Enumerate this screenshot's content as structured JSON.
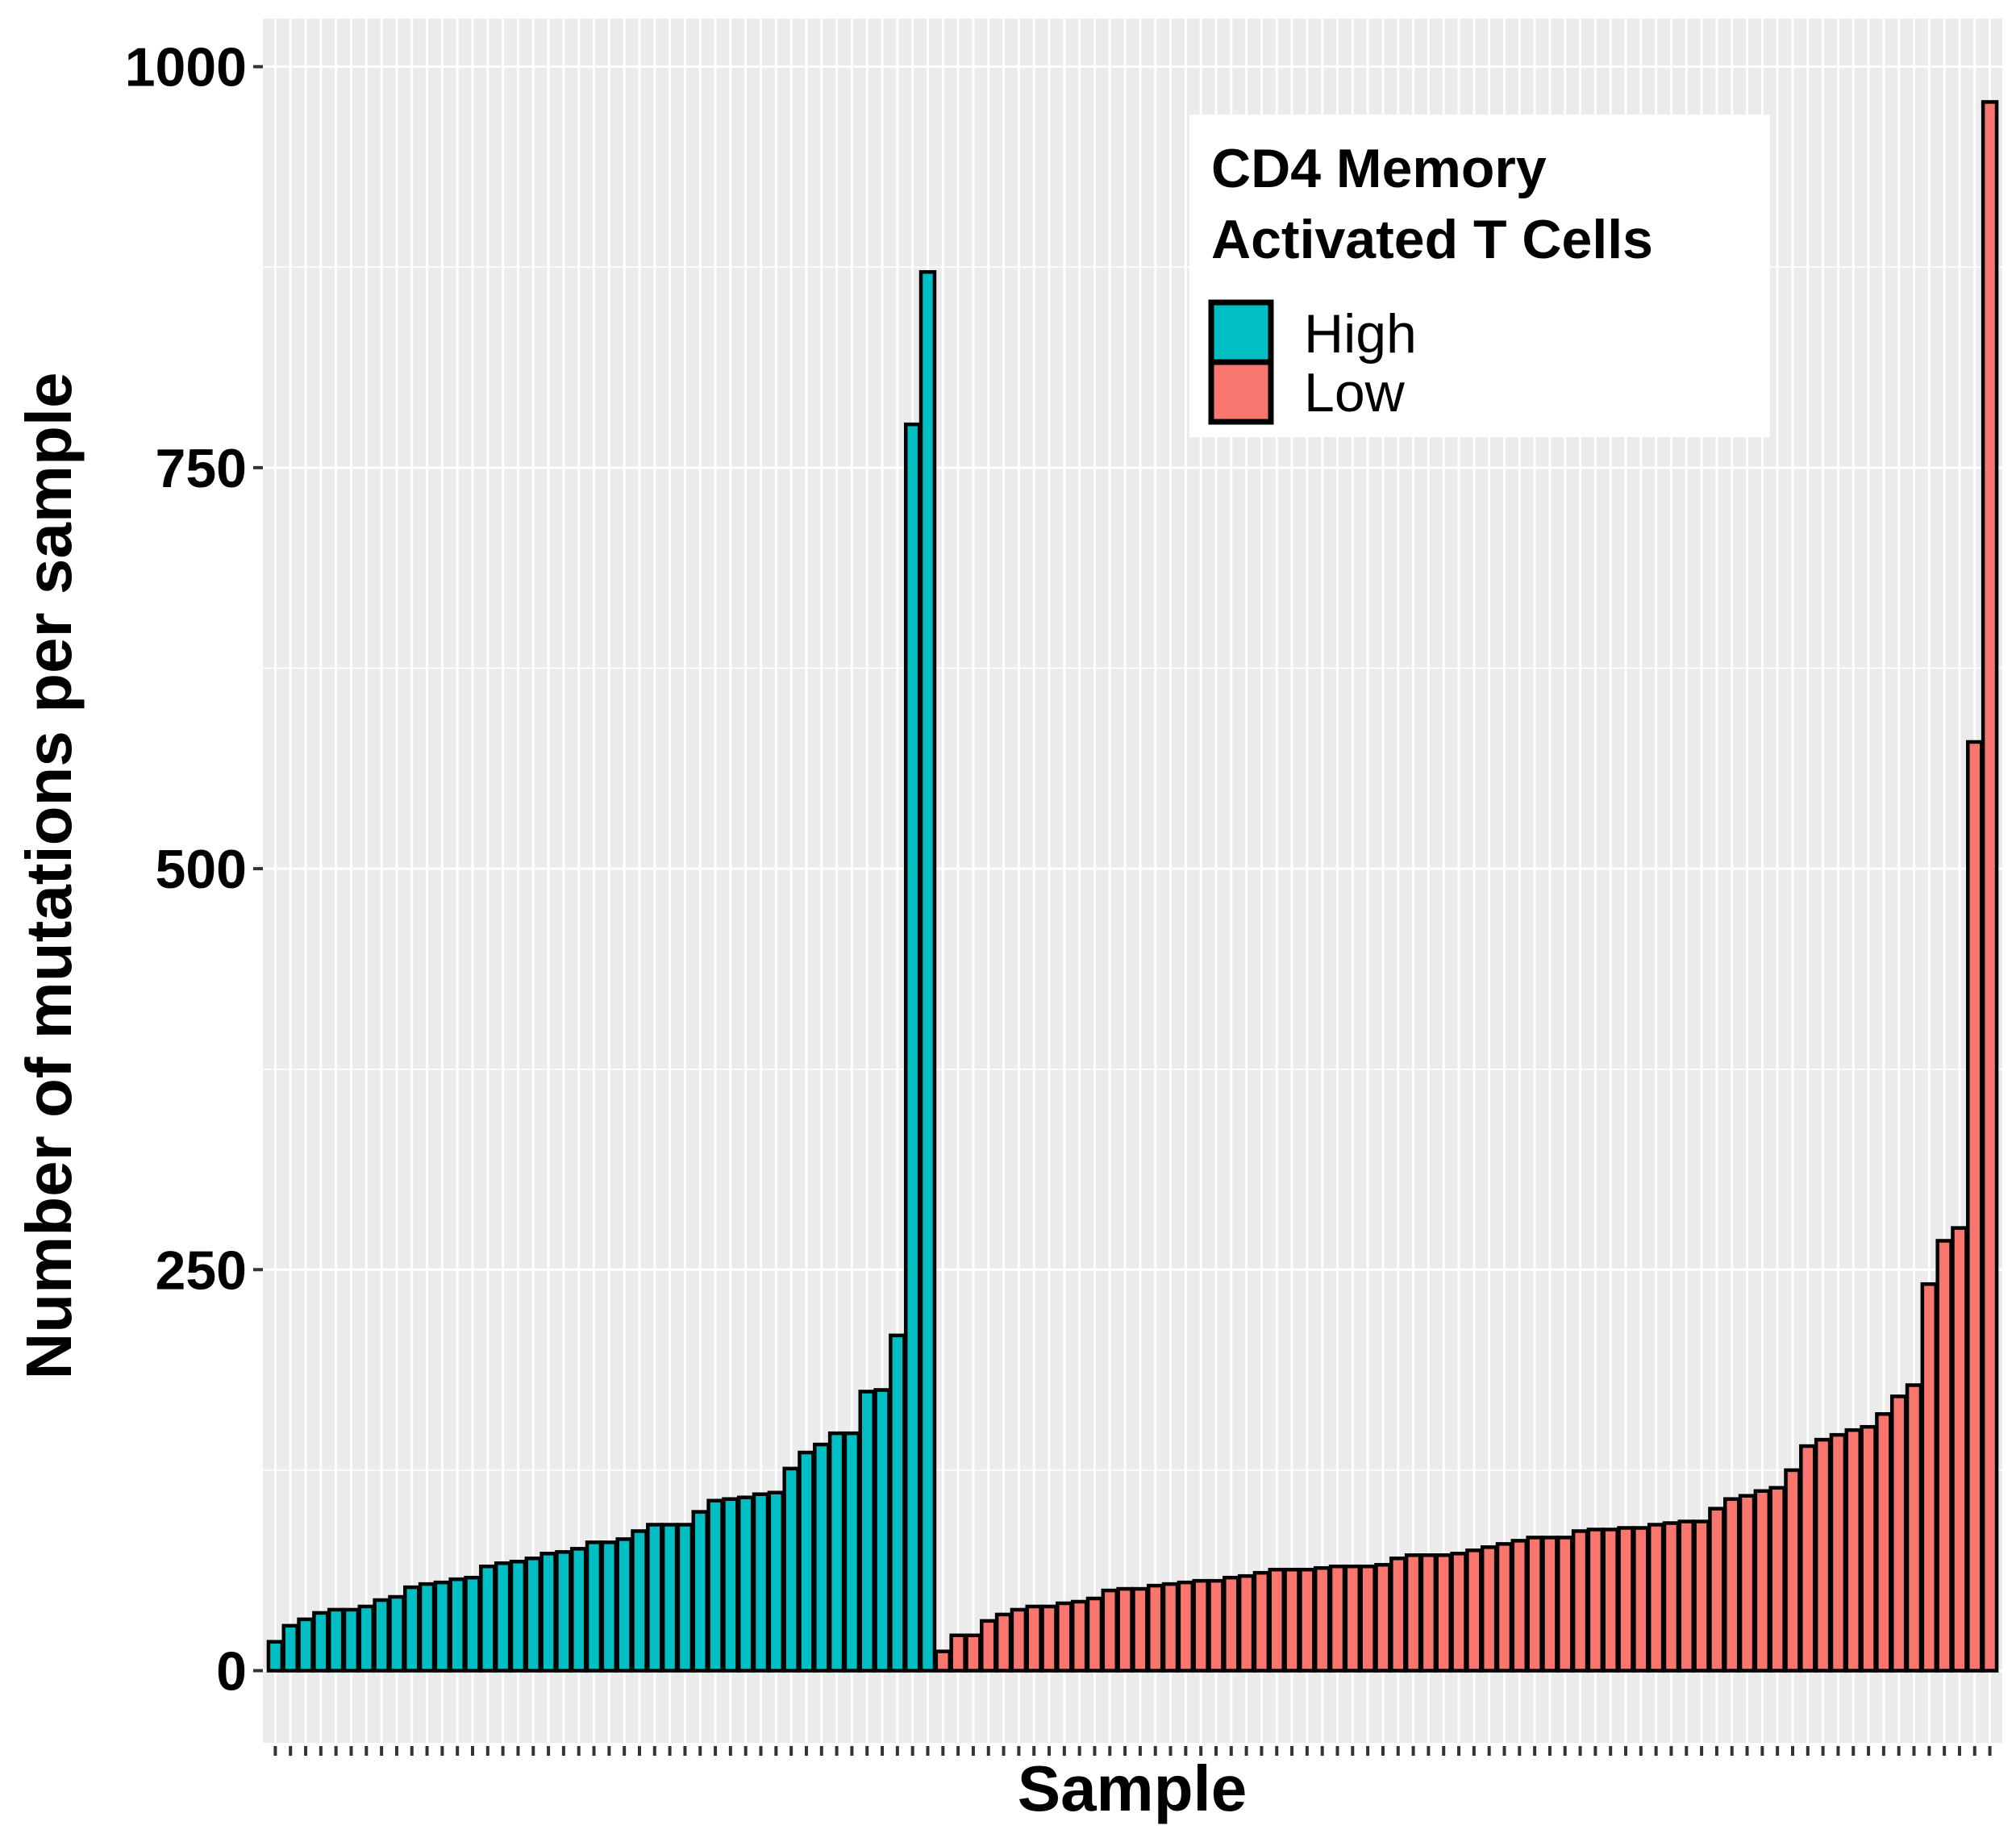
{
  "chart_data": {
    "type": "bar",
    "xlabel": "Sample",
    "ylabel": "Number of mutations per sample",
    "ylim": [
      -45,
      1030
    ],
    "yticks": [
      0,
      250,
      500,
      750,
      1000
    ],
    "grid": true,
    "legend": {
      "placement": "top-right",
      "title_lines": [
        "CD4 Memory",
        "Activated T Cells"
      ],
      "entries": [
        {
          "label": "High",
          "color": "#00BFC4"
        },
        {
          "label": "Low",
          "color": "#F8766D"
        }
      ]
    },
    "series": [
      {
        "name": "High",
        "color": "#00BFC4",
        "values": [
          18,
          28,
          32,
          36,
          38,
          38,
          40,
          44,
          46,
          52,
          54,
          55,
          57,
          58,
          65,
          67,
          68,
          70,
          73,
          74,
          76,
          80,
          80,
          82,
          87,
          91,
          91,
          91,
          99,
          106,
          107,
          108,
          110,
          111,
          126,
          136,
          141,
          148,
          148,
          174,
          175,
          209,
          777,
          872
        ]
      },
      {
        "name": "Low",
        "color": "#F8766D",
        "values": [
          12,
          22,
          22,
          31,
          35,
          38,
          40,
          40,
          42,
          43,
          45,
          50,
          51,
          51,
          53,
          54,
          55,
          56,
          56,
          58,
          59,
          61,
          63,
          63,
          63,
          64,
          65,
          65,
          65,
          66,
          70,
          72,
          72,
          72,
          73,
          75,
          77,
          79,
          81,
          83,
          83,
          83,
          87,
          88,
          88,
          89,
          89,
          91,
          92,
          93,
          93,
          101,
          107,
          109,
          112,
          114,
          125,
          140,
          144,
          147,
          150,
          152,
          160,
          171,
          178,
          241,
          268,
          276,
          579,
          978
        ]
      }
    ]
  }
}
